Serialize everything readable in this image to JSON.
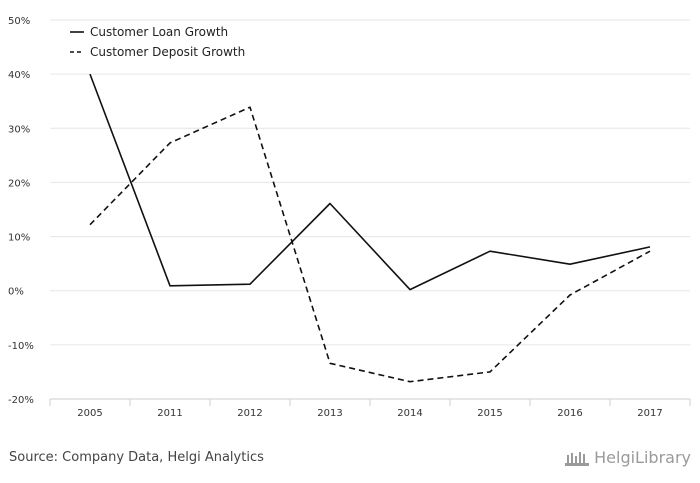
{
  "chart_data": {
    "type": "line",
    "categories": [
      "2005",
      "2011",
      "2012",
      "2013",
      "2014",
      "2015",
      "2016",
      "2017"
    ],
    "series": [
      {
        "name": "Customer Loan Growth",
        "style": "solid",
        "values": [
          40.0,
          0.9,
          1.2,
          16.1,
          0.2,
          7.3,
          4.9,
          8.1
        ]
      },
      {
        "name": "Customer Deposit Growth",
        "style": "dashed",
        "values": [
          12.2,
          27.3,
          33.9,
          -13.4,
          -16.8,
          -15.0,
          -0.8,
          7.3
        ]
      }
    ],
    "ylim": [
      -20,
      50
    ],
    "yticks": [
      "50%",
      "40%",
      "30%",
      "20%",
      "10%",
      "0%",
      "-10%",
      "-20%"
    ],
    "ytick_values": [
      50,
      40,
      30,
      20,
      10,
      0,
      -10,
      -20
    ],
    "grid": true,
    "legend": "top-left",
    "colors": {
      "line": "#111111",
      "grid": "#e6e6e6",
      "axis": "#cccccc"
    }
  },
  "footer": {
    "source": "Source: Company Data, Helgi Analytics",
    "logo_text": "HelgiLibrary"
  }
}
